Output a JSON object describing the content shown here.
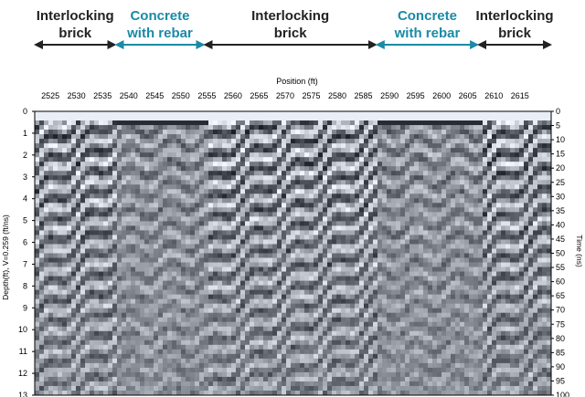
{
  "segments": [
    {
      "label": "Interlocking\nbrick",
      "color": "#222222",
      "start": 2522,
      "end": 2537.5
    },
    {
      "label": "Concrete\nwith rebar",
      "color": "#1a8aa6",
      "start": 2537.5,
      "end": 2554.5
    },
    {
      "label": "Interlocking\nbrick",
      "color": "#222222",
      "start": 2554.5,
      "end": 2587.5
    },
    {
      "label": "Concrete\nwith rebar",
      "color": "#1a8aa6",
      "start": 2587.5,
      "end": 2607
    },
    {
      "label": "Interlocking\nbrick",
      "color": "#222222",
      "start": 2607,
      "end": 2621
    }
  ],
  "chart_data": {
    "type": "heatmap",
    "description_free": true,
    "xlabel": "Position (ft)",
    "ylabel_left": "Depth(ft), V=0.259 (ft/ns)",
    "ylabel_right": "Time (ns)",
    "x_range": [
      2522,
      2621
    ],
    "x_ticks": [
      2525,
      2530,
      2535,
      2540,
      2545,
      2550,
      2555,
      2560,
      2565,
      2570,
      2575,
      2580,
      2585,
      2590,
      2595,
      2600,
      2605,
      2610,
      2615
    ],
    "depth_range": [
      0,
      13
    ],
    "depth_ticks": [
      0,
      1,
      2,
      3,
      4,
      5,
      6,
      7,
      8,
      9,
      10,
      11,
      12,
      13
    ],
    "time_range": [
      0,
      100
    ],
    "time_ticks": [
      0,
      5,
      10,
      15,
      20,
      25,
      30,
      35,
      40,
      45,
      50,
      55,
      60,
      65,
      70,
      75,
      80,
      85,
      90,
      95,
      100
    ],
    "hyperbola_apexes": [
      2554,
      2587,
      2608
    ],
    "colormap": [
      "#0a0c10",
      "#8d95a4",
      "#f4f5f7"
    ]
  }
}
